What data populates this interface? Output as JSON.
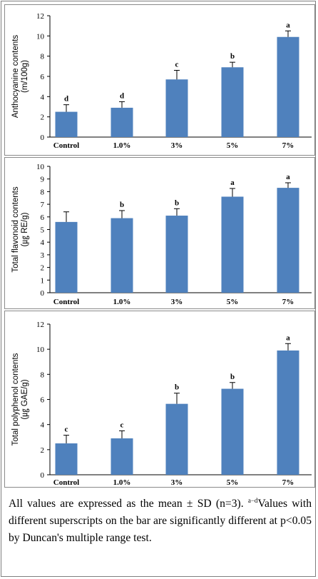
{
  "bar_color": "#4f81bd",
  "chart_data": [
    {
      "type": "bar",
      "ylabel_lines": [
        "Anthocyanine contents",
        "(m/100g)"
      ],
      "categories": [
        "Control",
        "1.0%",
        "3%",
        "5%",
        "7%"
      ],
      "values": [
        2.5,
        2.9,
        5.7,
        6.9,
        9.9
      ],
      "errors": [
        0.7,
        0.6,
        0.9,
        0.5,
        0.6
      ],
      "significance": [
        "d",
        "d",
        "c",
        "b",
        "a"
      ],
      "ylim": [
        0,
        12
      ],
      "yticks": [
        0,
        2,
        4,
        6,
        8,
        10,
        12
      ],
      "grid": false
    },
    {
      "type": "bar",
      "ylabel_lines": [
        "Total flavonoid contents",
        "(㎍ RE/g)"
      ],
      "categories": [
        "Control",
        "1.0%",
        "3%",
        "5%",
        "7%"
      ],
      "values": [
        5.6,
        5.9,
        6.1,
        7.6,
        8.3
      ],
      "errors": [
        0.8,
        0.6,
        0.55,
        0.65,
        0.4
      ],
      "significance": [
        "",
        "b",
        "b",
        "a",
        "a"
      ],
      "ylim": [
        0,
        10
      ],
      "yticks": [
        0,
        1,
        2,
        3,
        4,
        5,
        6,
        7,
        8,
        9,
        10
      ],
      "grid": false
    },
    {
      "type": "bar",
      "ylabel_lines": [
        "Total polyphenol contents",
        "(㎍ GAE/g)"
      ],
      "categories": [
        "Control",
        "1.0%",
        "3%",
        "5%",
        "7%"
      ],
      "values": [
        2.5,
        2.9,
        5.65,
        6.85,
        9.9
      ],
      "errors": [
        0.65,
        0.6,
        0.85,
        0.5,
        0.55
      ],
      "significance": [
        "c",
        "c",
        "b",
        "b",
        "a"
      ],
      "ylim": [
        0,
        12
      ],
      "yticks": [
        0,
        2,
        4,
        6,
        8,
        10,
        12
      ],
      "grid": false
    }
  ],
  "caption": {
    "line1": "All values are expressed as the mean ± SD (n=3).",
    "sup": "a−d",
    "line2": "Values with different superscripts on the bar are significantly different at p<0.05 by Duncan's multiple range test."
  }
}
